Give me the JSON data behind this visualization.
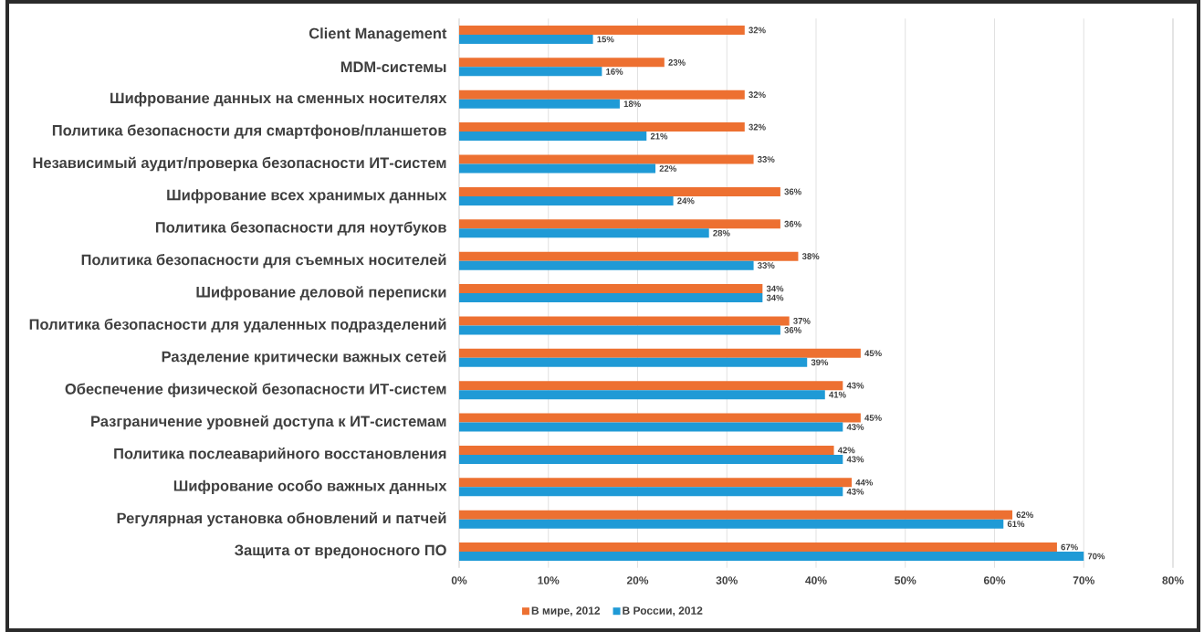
{
  "chart_data": {
    "type": "bar",
    "orientation": "horizontal",
    "categories": [
      "Client Management",
      "MDM-системы",
      "Шифрование данных на сменных носителях",
      "Политика безопасности для смартфонов/планшетов",
      "Независимый аудит/проверка безопасности ИТ-систем",
      "Шифрование всех хранимых данных",
      "Политика безопасности для ноутбуков",
      "Политика безопасности для съемных носителей",
      "Шифрование деловой переписки",
      "Политика безопасности для удаленных подразделений",
      "Разделение критически важных сетей",
      "Обеспечение физической безопасности ИТ-систем",
      "Разграничение уровней доступа к ИТ-системам",
      "Политика послеаварийного восстановления",
      "Шифрование особо важных данных",
      "Регулярная установка обновлений и патчей",
      "Защита от вредоносного ПО"
    ],
    "series": [
      {
        "name": "В мире, 2012",
        "color": "#ed7031",
        "values": [
          32,
          23,
          32,
          32,
          33,
          36,
          36,
          38,
          34,
          37,
          45,
          43,
          45,
          42,
          44,
          62,
          67
        ],
        "value_labels": [
          "32%",
          "23%",
          "32%",
          "32%",
          "33%",
          "36%",
          "36%",
          "38%",
          "34%",
          "37%",
          "45%",
          "43%",
          "45%",
          "42%",
          "44%",
          "62%",
          "67%"
        ]
      },
      {
        "name": "В России, 2012",
        "color": "#1f9ad6",
        "values": [
          15,
          16,
          18,
          21,
          22,
          24,
          28,
          33,
          34,
          36,
          39,
          41,
          43,
          43,
          43,
          61,
          70
        ],
        "value_labels": [
          "15%",
          "16%",
          "18%",
          "21%",
          "22%",
          "24%",
          "28%",
          "33%",
          "34%",
          "36%",
          "39%",
          "41%",
          "43%",
          "43%",
          "43%",
          "61%",
          "70%"
        ]
      }
    ],
    "xlim": [
      0,
      80
    ],
    "xticks": [
      {
        "value": 0,
        "label": "0%"
      },
      {
        "value": 10,
        "label": "10%"
      },
      {
        "value": 20,
        "label": "20%"
      },
      {
        "value": 30,
        "label": "30%"
      },
      {
        "value": 40,
        "label": "40%"
      },
      {
        "value": 50,
        "label": "50%"
      },
      {
        "value": 60,
        "label": "60%"
      },
      {
        "value": 70,
        "label": "70%"
      },
      {
        "value": 80,
        "label": "80%"
      }
    ],
    "grid": "x",
    "legend": "bottom"
  }
}
